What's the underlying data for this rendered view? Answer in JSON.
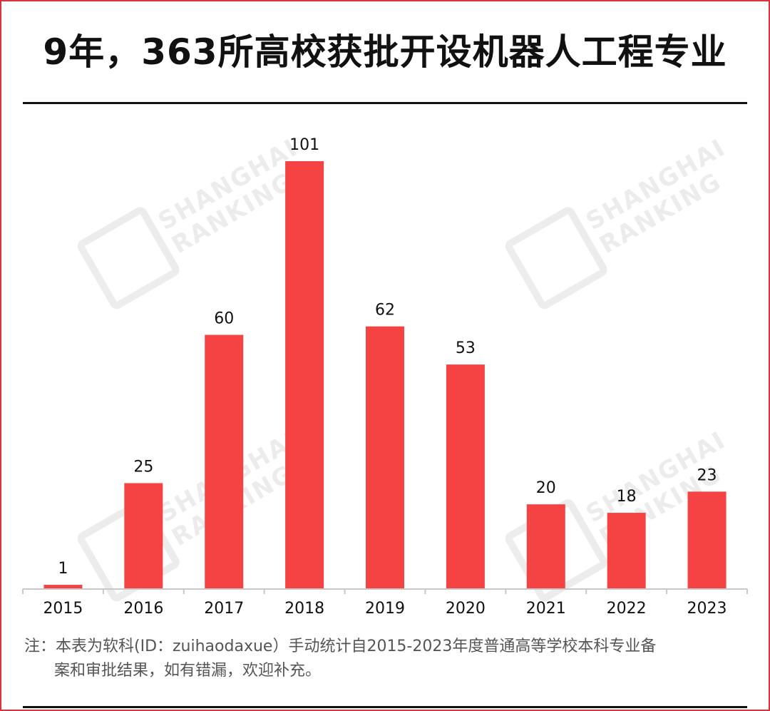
{
  "title": "9年，363所高校获批开设机器人工程专业",
  "watermark": {
    "line1": "SHANGHAI",
    "line2": "RANKING"
  },
  "note": {
    "line1": "注：本表为软科(ID：zuihaodaxue）手动统计自2015-2023年度普通高等学校本科专业备",
    "line2": "案和审批结果，如有错漏，欢迎补充。"
  },
  "colors": {
    "bar": "#f54343",
    "axis": "#c8c8c8",
    "text": "#111111",
    "frame": "#d9343a"
  },
  "chart_data": {
    "type": "bar",
    "title": "9年，363所高校获批开设机器人工程专业",
    "categories": [
      "2015",
      "2016",
      "2017",
      "2018",
      "2019",
      "2020",
      "2021",
      "2022",
      "2023"
    ],
    "values": [
      1,
      25,
      60,
      101,
      62,
      53,
      20,
      18,
      23
    ],
    "xlabel": "",
    "ylabel": "",
    "ylim": [
      0,
      101
    ],
    "grid": false,
    "legend": "none",
    "data_labels": true
  }
}
